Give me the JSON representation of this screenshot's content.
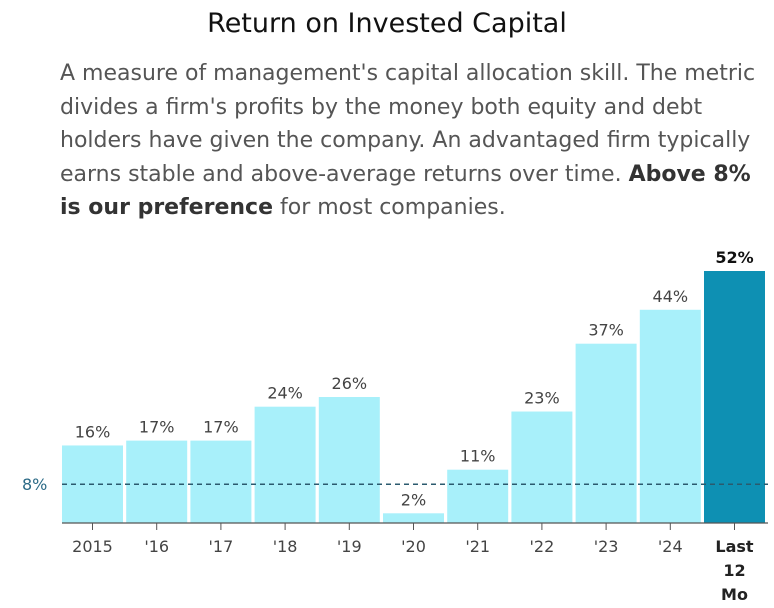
{
  "title": "Return on Invested Capital",
  "description": {
    "text": "A measure of management's capital allocation skill. The metric divides a firm's profits by the money both equity and debt holders have given the company. An advantaged firm typically earns stable and above-average returns over time. ",
    "bold": "Above 8% is our preference",
    "tail": " for most companies."
  },
  "colors": {
    "bar": "#a8f0fa",
    "highlight": "#0e90b3",
    "ref_line": "#2b5a6e"
  },
  "chart_data": {
    "type": "bar",
    "title": "Return on Invested Capital",
    "categories": [
      "2015",
      "'16",
      "'17",
      "'18",
      "'19",
      "'20",
      "'21",
      "'22",
      "'23",
      "'24",
      "Last 12 Mo"
    ],
    "category_lines": [
      [
        "2015"
      ],
      [
        "'16"
      ],
      [
        "'17"
      ],
      [
        "'18"
      ],
      [
        "'19"
      ],
      [
        "'20"
      ],
      [
        "'21"
      ],
      [
        "'22"
      ],
      [
        "'23"
      ],
      [
        "'24"
      ],
      [
        "Last",
        "12",
        "Mo"
      ]
    ],
    "values": [
      16,
      17,
      17,
      24,
      26,
      2,
      11,
      23,
      37,
      44,
      52
    ],
    "value_labels": [
      "16%",
      "17%",
      "17%",
      "24%",
      "26%",
      "2%",
      "11%",
      "23%",
      "37%",
      "44%",
      "52%"
    ],
    "highlight_index": 10,
    "reference_line": {
      "value": 8,
      "label": "8%"
    },
    "ylim": [
      0,
      52
    ],
    "unit": "%"
  }
}
